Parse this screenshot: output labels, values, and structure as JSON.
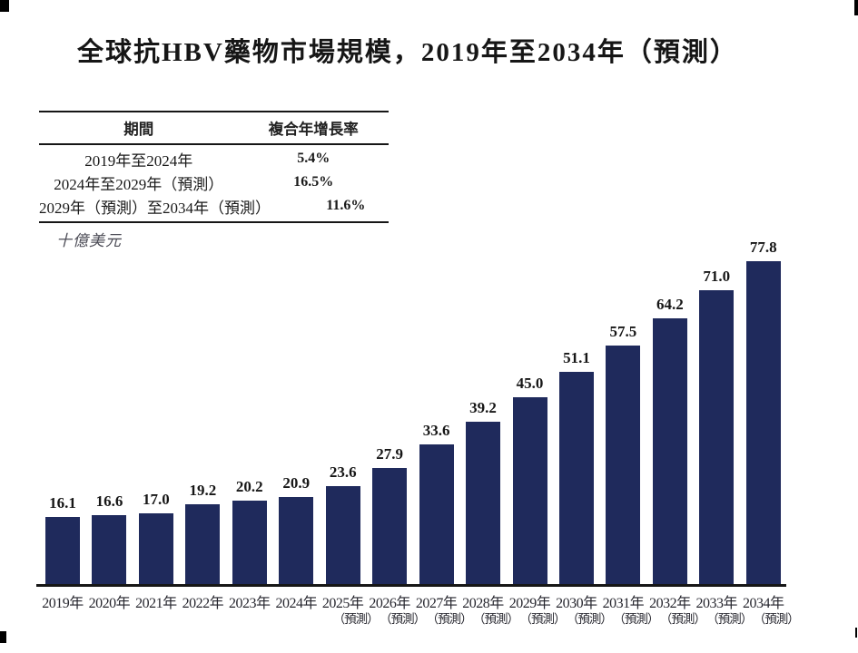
{
  "title": "全球抗HBV藥物市場規模，2019年至2034年（預測）",
  "cagr_table": {
    "headers": [
      "期間",
      "複合年增長率"
    ],
    "rows": [
      {
        "period": "2019年至2024年",
        "cagr": "5.4%"
      },
      {
        "period": "2024年至2029年（預測）",
        "cagr": "16.5%"
      },
      {
        "period": "2029年（預測）至2034年（預測）",
        "cagr": "11.6%"
      }
    ]
  },
  "unit_label": "十億美元",
  "chart_data": {
    "type": "bar",
    "title": "全球抗HBV藥物市場規模，2019年至2034年（預測）",
    "ylabel": "十億美元",
    "categories": [
      "2019年",
      "2020年",
      "2021年",
      "2022年",
      "2023年",
      "2024年",
      "2025年",
      "2026年",
      "2027年",
      "2028年",
      "2029年",
      "2030年",
      "2031年",
      "2032年",
      "2033年",
      "2034年"
    ],
    "values": [
      16.1,
      16.6,
      17.0,
      19.2,
      20.2,
      20.9,
      23.6,
      27.9,
      33.6,
      39.2,
      45.0,
      51.1,
      57.5,
      64.2,
      71.0,
      77.8
    ],
    "forecast_suffix": "（預測）",
    "forecast_from_index": 6,
    "bar_color": "#1f2a5c",
    "axis_color": "#161616",
    "ylim": [
      0,
      80
    ],
    "grid": false,
    "legend": null,
    "data_labels": true
  }
}
